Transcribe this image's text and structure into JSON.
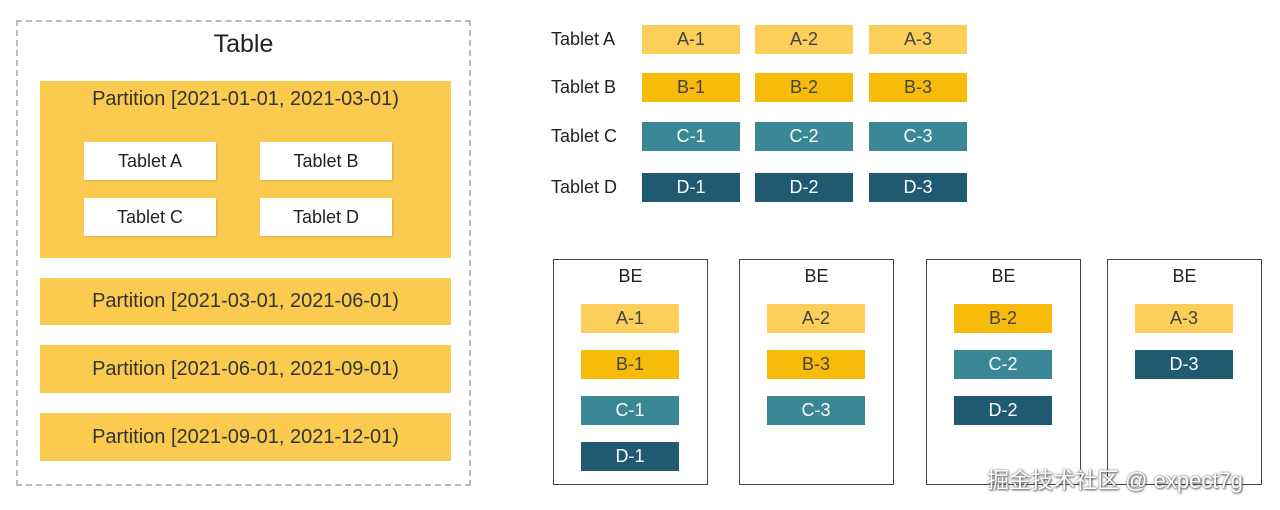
{
  "table": {
    "title": "Table",
    "partitions": [
      {
        "label": "Partition [2021-01-01, 2021-03-01)",
        "tablets": [
          "Tablet A",
          "Tablet B",
          "Tablet C",
          "Tablet D"
        ]
      },
      {
        "label": "Partition [2021-03-01, 2021-06-01)"
      },
      {
        "label": "Partition [2021-06-01, 2021-09-01)"
      },
      {
        "label": "Partition [2021-09-01, 2021-12-01)"
      }
    ]
  },
  "tablet_rows": [
    {
      "label": "Tablet A",
      "replicas": [
        "A-1",
        "A-2",
        "A-3"
      ]
    },
    {
      "label": "Tablet B",
      "replicas": [
        "B-1",
        "B-2",
        "B-3"
      ]
    },
    {
      "label": "Tablet C",
      "replicas": [
        "C-1",
        "C-2",
        "C-3"
      ]
    },
    {
      "label": "Tablet D",
      "replicas": [
        "D-1",
        "D-2",
        "D-3"
      ]
    }
  ],
  "be_nodes": [
    {
      "title": "BE",
      "replicas": [
        "A-1",
        "B-1",
        "C-1",
        "D-1"
      ]
    },
    {
      "title": "BE",
      "replicas": [
        "A-2",
        "B-3",
        "C-3"
      ]
    },
    {
      "title": "BE",
      "replicas": [
        "B-2",
        "C-2",
        "D-2"
      ]
    },
    {
      "title": "BE",
      "replicas": [
        "A-3",
        "D-3"
      ]
    }
  ],
  "watermark": "掘金技术社区 @ expect7g"
}
